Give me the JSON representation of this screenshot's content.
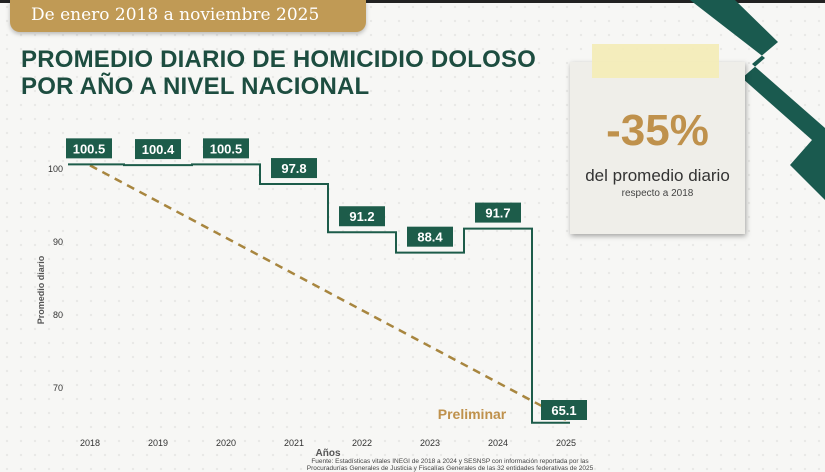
{
  "banner": "De enero 2018 a noviembre 2025",
  "title_line1": "PROMEDIO DIARIO DE HOMICIDIO DOLOSO",
  "title_line2": "POR AÑO A NIVEL NACIONAL",
  "callout": {
    "value": "-35%",
    "line1": "del promedio diario",
    "line2": "respecto a 2018"
  },
  "footnote": "Fuente: Estadísticas vitales INEGI de 2018 a 2024 y SESNSP con información reportada por las Procuradurías Generales de Justicia y Fiscalías Generales de las 32 entidades federativas de 2025",
  "colors": {
    "green": "#1d5c4a",
    "gold": "#bf914c"
  },
  "chart_data": {
    "type": "line",
    "style": "step",
    "categories": [
      "2018",
      "2019",
      "2020",
      "2021",
      "2022",
      "2023",
      "2024",
      "2025"
    ],
    "values": [
      100.5,
      100.4,
      100.5,
      97.8,
      91.2,
      88.4,
      91.7,
      65.1
    ],
    "labels": [
      "100.5",
      "100.4",
      "100.5",
      "97.8",
      "91.2",
      "88.4",
      "91.7",
      "65.1"
    ],
    "xlabel": "Años",
    "ylabel": "Promedio diario",
    "yticks": [
      70,
      80,
      90,
      100
    ],
    "trend": {
      "from": "2018",
      "to": "2025",
      "style": "dashed arrow"
    },
    "annotation": "Preliminar",
    "grid": false
  }
}
